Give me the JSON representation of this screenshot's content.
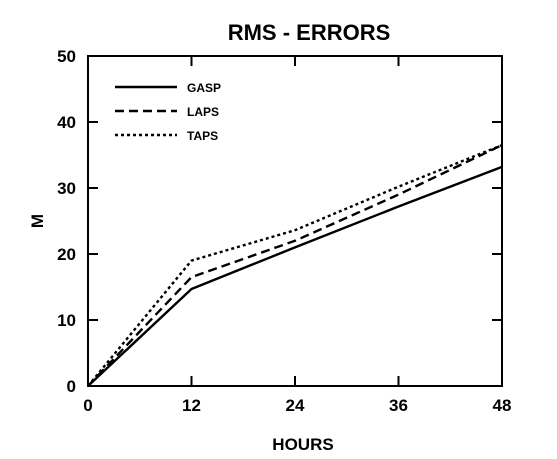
{
  "chart_data": {
    "type": "line",
    "title": "RMS - ERRORS",
    "xlabel": "HOURS",
    "ylabel": "M",
    "x": [
      0,
      12,
      24,
      36,
      48
    ],
    "xlim": [
      0,
      48
    ],
    "ylim": [
      0,
      50
    ],
    "xticks": [
      "0",
      "12",
      "24",
      "36",
      "48"
    ],
    "yticks": [
      "0",
      "10",
      "20",
      "30",
      "40",
      "50"
    ],
    "grid": false,
    "legend_position": "top-left",
    "series": [
      {
        "name": "GASP",
        "values": [
          0,
          14.7,
          21.0,
          27.2,
          33.2
        ],
        "style": "solid"
      },
      {
        "name": "LAPS",
        "values": [
          0,
          16.5,
          22.0,
          29.0,
          36.5
        ],
        "style": "dashed"
      },
      {
        "name": "TAPS",
        "values": [
          0,
          19.0,
          23.6,
          30.2,
          36.5
        ],
        "style": "dotted"
      }
    ]
  }
}
